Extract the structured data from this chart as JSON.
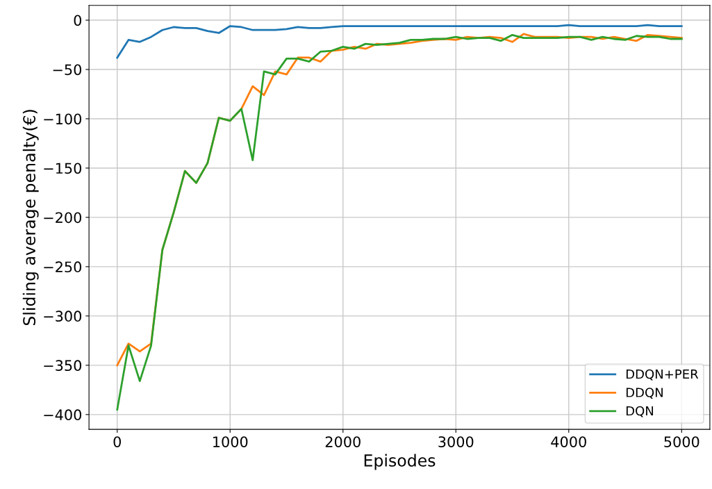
{
  "chart_data": {
    "type": "line",
    "xlabel": "Episodes",
    "ylabel": "Sliding average penalty(€)",
    "x": [
      0,
      100,
      200,
      300,
      400,
      500,
      600,
      700,
      800,
      900,
      1000,
      1100,
      1200,
      1300,
      1400,
      1500,
      1600,
      1700,
      1800,
      1900,
      2000,
      2100,
      2200,
      2300,
      2400,
      2500,
      2600,
      2700,
      2800,
      2900,
      3000,
      3100,
      3200,
      3300,
      3400,
      3500,
      3600,
      3700,
      3800,
      3900,
      4000,
      4100,
      4200,
      4300,
      4400,
      4500,
      4600,
      4700,
      4800,
      4900,
      5000
    ],
    "series": [
      {
        "name": "DDQN+PER",
        "color": "#1f77b4",
        "values": [
          -38,
          -20,
          -22,
          -17,
          -10,
          -7,
          -8,
          -8,
          -11,
          -13,
          -6,
          -7,
          -10,
          -10,
          -10,
          -9,
          -7,
          -8,
          -8,
          -7,
          -6,
          -6,
          -6,
          -6,
          -6,
          -6,
          -6,
          -6,
          -6,
          -6,
          -6,
          -6,
          -6,
          -6,
          -6,
          -6,
          -6,
          -6,
          -6,
          -6,
          -5,
          -6,
          -6,
          -6,
          -6,
          -6,
          -6,
          -5,
          -6,
          -6,
          -6
        ]
      },
      {
        "name": "DDQN",
        "color": "#ff7f0e",
        "values": [
          -350,
          -328,
          -336,
          -328,
          -233,
          -195,
          -153,
          -165,
          -145,
          -99,
          -102,
          -90,
          -67,
          -76,
          -52,
          -55,
          -38,
          -38,
          -42,
          -31,
          -30,
          -27,
          -29,
          -24,
          -25,
          -24,
          -23,
          -21,
          -20,
          -19,
          -20,
          -17,
          -18,
          -17,
          -18,
          -22,
          -14,
          -17,
          -17,
          -17,
          -18,
          -17,
          -17,
          -19,
          -17,
          -19,
          -21,
          -15,
          -16,
          -17,
          -18
        ]
      },
      {
        "name": "DQN",
        "color": "#2ca02c",
        "values": [
          -395,
          -330,
          -366,
          -330,
          -233,
          -195,
          -153,
          -165,
          -145,
          -99,
          -102,
          -90,
          -142,
          -52,
          -55,
          -39,
          -39,
          -42,
          -32,
          -31,
          -27,
          -29,
          -24,
          -25,
          -24,
          -23,
          -20,
          -20,
          -19,
          -19,
          -17,
          -19,
          -18,
          -18,
          -21,
          -15,
          -18,
          -18,
          -18,
          -18,
          -17,
          -17,
          -20,
          -17,
          -19,
          -20,
          -16,
          -17,
          -17,
          -19,
          -19
        ]
      }
    ],
    "xlim": [
      -250,
      5250
    ],
    "xticks": [
      0,
      1000,
      2000,
      3000,
      4000,
      5000
    ],
    "ylim": [
      -415,
      15
    ],
    "yticks": [
      -400,
      -350,
      -300,
      -250,
      -200,
      -150,
      -100,
      -50,
      0
    ],
    "grid": true,
    "legend": "bottom right"
  }
}
